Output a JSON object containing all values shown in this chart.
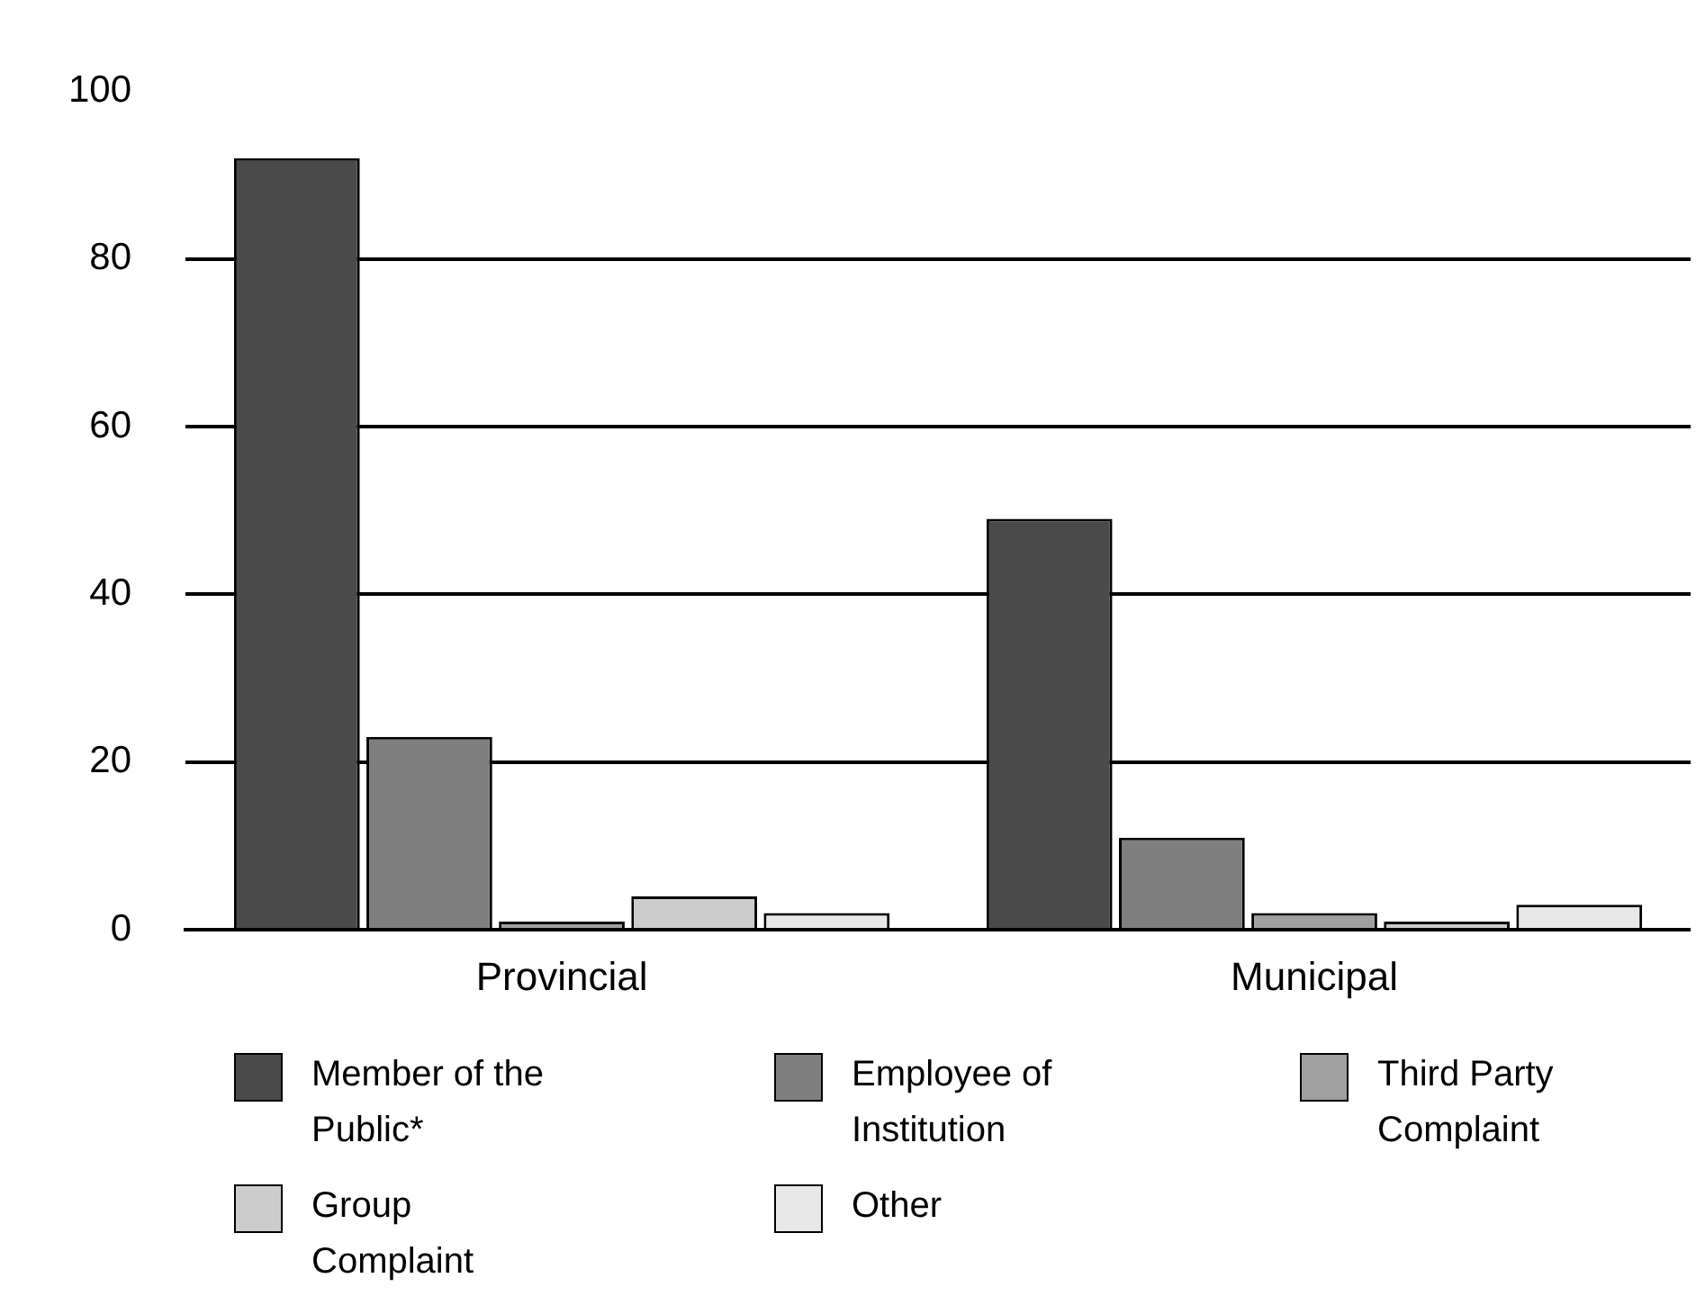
{
  "chart_data": {
    "type": "bar",
    "categories": [
      "Provincial",
      "Municipal"
    ],
    "series": [
      {
        "name": "Member of the Public*",
        "color": "#4a4a4a",
        "values": [
          92,
          49
        ]
      },
      {
        "name": "Employee of Institution",
        "color": "#7f7f7f",
        "values": [
          23,
          11
        ]
      },
      {
        "name": "Third Party Complaint",
        "color": "#a0a0a0",
        "values": [
          1,
          2
        ]
      },
      {
        "name": "Group Complaint",
        "color": "#cccccc",
        "values": [
          4,
          1
        ]
      },
      {
        "name": "Other",
        "color": "#e8e8e8",
        "values": [
          2,
          3
        ]
      }
    ],
    "ylim": [
      0,
      100
    ],
    "yticks": [
      0,
      20,
      40,
      60,
      80,
      100
    ],
    "grid": "y",
    "legend": "bottom"
  }
}
